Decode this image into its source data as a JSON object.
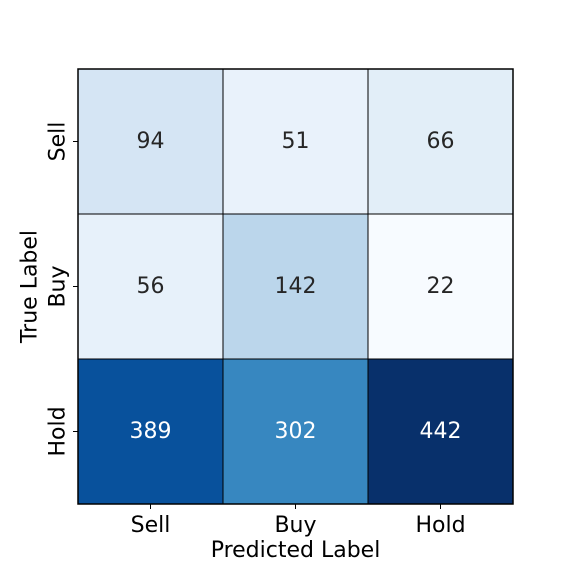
{
  "chart_data": {
    "type": "heatmap",
    "title": "",
    "xlabel": "Predicted Label",
    "ylabel": "True Label",
    "x_categories": [
      "Sell",
      "Buy",
      "Hold"
    ],
    "y_categories": [
      "Sell",
      "Buy",
      "Hold"
    ],
    "values": [
      [
        94,
        51,
        66
      ],
      [
        56,
        142,
        22
      ],
      [
        389,
        302,
        442
      ]
    ],
    "colormap": "Blues",
    "value_range": [
      22,
      442
    ],
    "colorbar": false,
    "grid": false
  }
}
